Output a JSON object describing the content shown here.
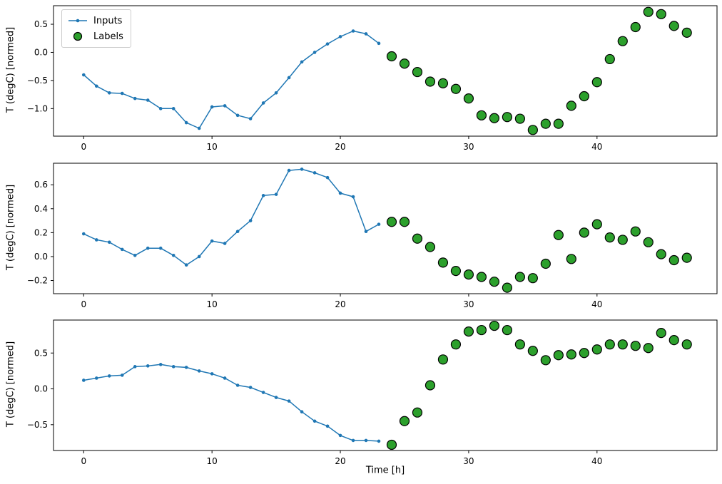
{
  "colors": {
    "inputs": "#1f77b4",
    "labels_fill": "#2ca02c",
    "labels_edge": "#000000",
    "axes_edge": "#000000",
    "background": "#ffffff"
  },
  "figure": {
    "legend": {
      "items": [
        {
          "label": "Inputs",
          "type": "line-with-marker",
          "color": "#1f77b4"
        },
        {
          "label": "Labels",
          "type": "circle",
          "color": "#2ca02c"
        }
      ],
      "position": "upper-left"
    }
  },
  "chart_data": [
    {
      "type": "line",
      "title": "",
      "xlabel": "",
      "ylabel": "T (degC) [normed]",
      "xlim": [
        -2.35,
        49.35
      ],
      "ylim": [
        -1.49,
        0.83
      ],
      "xticks": [
        0,
        10,
        20,
        30,
        40
      ],
      "yticks": [
        0.5,
        0.0,
        -0.5,
        -1.0
      ],
      "grid": false,
      "series": [
        {
          "name": "Inputs",
          "type": "line",
          "color": "#1f77b4",
          "x": [
            0,
            1,
            2,
            3,
            4,
            5,
            6,
            7,
            8,
            9,
            10,
            11,
            12,
            13,
            14,
            15,
            16,
            17,
            18,
            19,
            20,
            21,
            22,
            23
          ],
          "y": [
            -0.4,
            -0.6,
            -0.72,
            -0.73,
            -0.82,
            -0.85,
            -1.0,
            -1.0,
            -1.25,
            -1.35,
            -0.97,
            -0.95,
            -1.12,
            -1.18,
            -0.9,
            -0.72,
            -0.45,
            -0.17,
            0.0,
            0.15,
            0.28,
            0.38,
            0.33,
            0.16
          ]
        },
        {
          "name": "Labels",
          "type": "scatter",
          "color": "#2ca02c",
          "x": [
            24,
            25,
            26,
            27,
            28,
            29,
            30,
            31,
            32,
            33,
            34,
            35,
            36,
            37,
            38,
            39,
            40,
            41,
            42,
            43,
            44,
            45,
            46,
            47
          ],
          "y": [
            -0.07,
            -0.2,
            -0.35,
            -0.52,
            -0.55,
            -0.65,
            -0.82,
            -1.12,
            -1.17,
            -1.15,
            -1.18,
            -1.38,
            -1.27,
            -1.27,
            -0.95,
            -0.78,
            -0.53,
            -0.12,
            0.2,
            0.45,
            0.72,
            0.68,
            0.47,
            0.35
          ]
        }
      ]
    },
    {
      "type": "line",
      "title": "",
      "xlabel": "",
      "ylabel": "T (degC) [normed]",
      "xlim": [
        -2.35,
        49.35
      ],
      "ylim": [
        -0.31,
        0.78
      ],
      "xticks": [
        0,
        10,
        20,
        30,
        40
      ],
      "yticks": [
        0.6,
        0.4,
        0.2,
        0.0,
        -0.2
      ],
      "grid": false,
      "series": [
        {
          "name": "Inputs",
          "type": "line",
          "color": "#1f77b4",
          "x": [
            0,
            1,
            2,
            3,
            4,
            5,
            6,
            7,
            8,
            9,
            10,
            11,
            12,
            13,
            14,
            15,
            16,
            17,
            18,
            19,
            20,
            21,
            22,
            23
          ],
          "y": [
            0.19,
            0.14,
            0.12,
            0.06,
            0.01,
            0.07,
            0.07,
            0.01,
            -0.07,
            0.0,
            0.13,
            0.11,
            0.21,
            0.3,
            0.51,
            0.52,
            0.72,
            0.73,
            0.7,
            0.66,
            0.53,
            0.5,
            0.21,
            0.27
          ]
        },
        {
          "name": "Labels",
          "type": "scatter",
          "color": "#2ca02c",
          "x": [
            24,
            25,
            26,
            27,
            28,
            29,
            30,
            31,
            32,
            33,
            34,
            35,
            36,
            37,
            38,
            39,
            40,
            41,
            42,
            43,
            44,
            45,
            46,
            47
          ],
          "y": [
            0.29,
            0.29,
            0.15,
            0.08,
            -0.05,
            -0.12,
            -0.15,
            -0.17,
            -0.21,
            -0.26,
            -0.17,
            -0.18,
            -0.06,
            0.18,
            -0.02,
            0.2,
            0.27,
            0.16,
            0.14,
            0.21,
            0.12,
            0.02,
            -0.03,
            -0.01
          ]
        }
      ]
    },
    {
      "type": "line",
      "title": "",
      "xlabel": "Time [h]",
      "ylabel": "T (degC) [normed]",
      "xlim": [
        -2.35,
        49.35
      ],
      "ylim": [
        -0.86,
        0.96
      ],
      "xticks": [
        0,
        10,
        20,
        30,
        40
      ],
      "yticks": [
        0.5,
        0.0,
        -0.5
      ],
      "grid": false,
      "series": [
        {
          "name": "Inputs",
          "type": "line",
          "color": "#1f77b4",
          "x": [
            0,
            1,
            2,
            3,
            4,
            5,
            6,
            7,
            8,
            9,
            10,
            11,
            12,
            13,
            14,
            15,
            16,
            17,
            18,
            19,
            20,
            21,
            22,
            23
          ],
          "y": [
            0.12,
            0.15,
            0.18,
            0.19,
            0.31,
            0.32,
            0.34,
            0.31,
            0.3,
            0.25,
            0.21,
            0.15,
            0.05,
            0.02,
            -0.05,
            -0.12,
            -0.17,
            -0.32,
            -0.45,
            -0.52,
            -0.65,
            -0.72,
            -0.72,
            -0.73
          ]
        },
        {
          "name": "Labels",
          "type": "scatter",
          "color": "#2ca02c",
          "x": [
            24,
            25,
            26,
            27,
            28,
            29,
            30,
            31,
            32,
            33,
            34,
            35,
            36,
            37,
            38,
            39,
            40,
            41,
            42,
            43,
            44,
            45,
            46,
            47
          ],
          "y": [
            -0.78,
            -0.45,
            -0.33,
            0.05,
            0.41,
            0.62,
            0.8,
            0.82,
            0.88,
            0.82,
            0.62,
            0.53,
            0.4,
            0.47,
            0.48,
            0.5,
            0.55,
            0.62,
            0.62,
            0.6,
            0.57,
            0.78,
            0.68,
            0.62
          ]
        }
      ]
    }
  ]
}
